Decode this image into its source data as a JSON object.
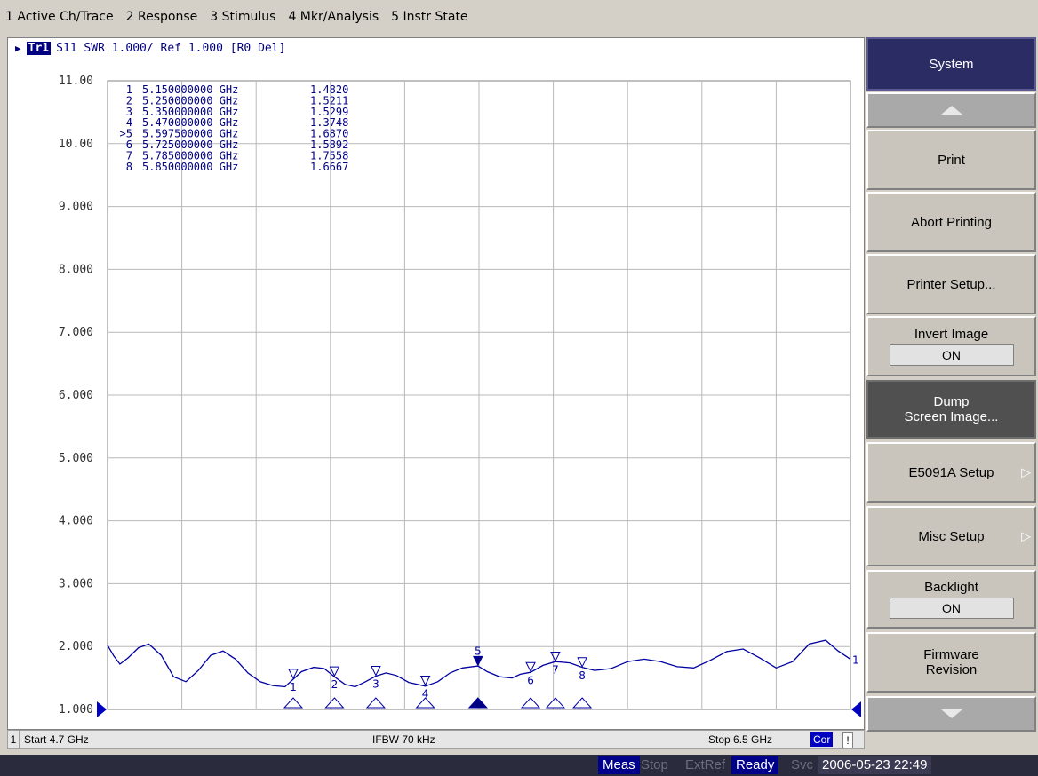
{
  "menu": [
    "1 Active Ch/Trace",
    "2 Response",
    "3 Stimulus",
    "4 Mkr/Analysis",
    "5 Instr State"
  ],
  "trace_header": {
    "trace": "Tr1",
    "info": "S11  SWR 1.000/ Ref 1.000  [R0 Del]"
  },
  "chart_data": {
    "type": "line",
    "ylim": [
      1.0,
      11.0
    ],
    "xlim": [
      4.7,
      6.5
    ],
    "x_unit": "GHz",
    "y_tick_labels": [
      "11.00",
      "10.00",
      "9.000",
      "8.000",
      "7.000",
      "6.000",
      "5.000",
      "4.000",
      "3.000",
      "2.000",
      "1.000"
    ],
    "trace_label": "1",
    "series": [
      {
        "x": [
          4.7,
          4.715,
          4.73,
          4.75,
          4.775,
          4.8,
          4.83,
          4.86,
          4.89,
          4.92,
          4.95,
          4.98,
          5.01,
          5.04,
          5.07,
          5.1,
          5.13,
          5.15,
          5.17,
          5.2,
          5.225,
          5.25,
          5.275,
          5.3,
          5.325,
          5.35,
          5.375,
          5.4,
          5.43,
          5.47,
          5.5,
          5.53,
          5.56,
          5.5975,
          5.62,
          5.65,
          5.68,
          5.7,
          5.725,
          5.755,
          5.785,
          5.82,
          5.85,
          5.88,
          5.92,
          5.96,
          6.0,
          6.04,
          6.08,
          6.12,
          6.16,
          6.2,
          6.24,
          6.28,
          6.32,
          6.36,
          6.4,
          6.44,
          6.47,
          6.5
        ],
        "y": [
          2.02,
          1.85,
          1.72,
          1.82,
          1.98,
          2.04,
          1.86,
          1.52,
          1.44,
          1.62,
          1.86,
          1.93,
          1.8,
          1.58,
          1.44,
          1.38,
          1.36,
          1.48,
          1.6,
          1.67,
          1.65,
          1.52,
          1.4,
          1.36,
          1.44,
          1.53,
          1.58,
          1.54,
          1.43,
          1.37,
          1.44,
          1.58,
          1.66,
          1.69,
          1.6,
          1.52,
          1.5,
          1.56,
          1.59,
          1.7,
          1.76,
          1.74,
          1.67,
          1.62,
          1.65,
          1.76,
          1.8,
          1.76,
          1.68,
          1.66,
          1.78,
          1.92,
          1.96,
          1.82,
          1.66,
          1.76,
          2.04,
          2.1,
          1.93,
          1.8
        ]
      }
    ],
    "markers": [
      {
        "num": "1",
        "x": 5.15,
        "y": 1.482,
        "freq": "5.150000000 GHz",
        "val": "1.4820",
        "active": false
      },
      {
        "num": "2",
        "x": 5.25,
        "y": 1.5211,
        "freq": "5.250000000 GHz",
        "val": "1.5211",
        "active": false
      },
      {
        "num": "3",
        "x": 5.35,
        "y": 1.5299,
        "freq": "5.350000000 GHz",
        "val": "1.5299",
        "active": false
      },
      {
        "num": "4",
        "x": 5.47,
        "y": 1.3748,
        "freq": "5.470000000 GHz",
        "val": "1.3748",
        "active": false
      },
      {
        "num": "5",
        "x": 5.5975,
        "y": 1.687,
        "freq": "5.597500000 GHz",
        "val": "1.6870",
        "active": true
      },
      {
        "num": "6",
        "x": 5.725,
        "y": 1.5892,
        "freq": "5.725000000 GHz",
        "val": "1.5892",
        "active": false
      },
      {
        "num": "7",
        "x": 5.785,
        "y": 1.7558,
        "freq": "5.785000000 GHz",
        "val": "1.7558",
        "active": false
      },
      {
        "num": "8",
        "x": 5.85,
        "y": 1.6667,
        "freq": "5.850000000 GHz",
        "val": "1.6667",
        "active": false
      }
    ],
    "trace_color": "#0000a0",
    "grid_color": "#b8b8b8"
  },
  "channel_status": {
    "ch": "1",
    "start": "Start 4.7 GHz",
    "ifbw": "IFBW 70 kHz",
    "stop": "Stop 6.5 GHz",
    "cor": "Cor",
    "bang": "!"
  },
  "softkeys": {
    "title": "System",
    "print": "Print",
    "abort": "Abort Printing",
    "printer_setup": "Printer Setup...",
    "invert_image": "Invert Image",
    "invert_image_val": "ON",
    "dump_1": "Dump",
    "dump_2": "Screen Image...",
    "e5091a": "E5091A Setup",
    "misc": "Misc Setup",
    "backlight": "Backlight",
    "backlight_val": "ON",
    "fw_1": "Firmware",
    "fw_2": "Revision"
  },
  "status": {
    "meas": "Meas",
    "stop": "Stop",
    "extref": "ExtRef",
    "ready": "Ready",
    "svc": "Svc",
    "time": "2006-05-23 22:49"
  }
}
